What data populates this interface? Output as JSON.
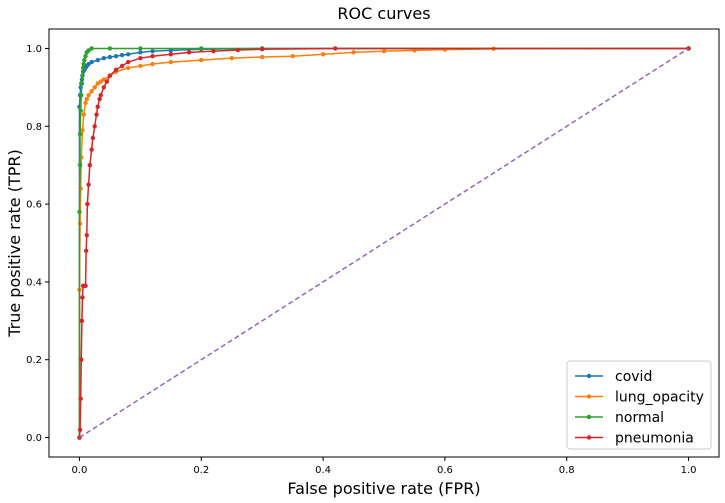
{
  "chart_data": {
    "type": "line",
    "title": "ROC curves",
    "xlabel": "False positive rate (FPR)",
    "ylabel": "True positive rate (TPR)",
    "xlim": [
      -0.05,
      1.05
    ],
    "ylim": [
      -0.05,
      1.05
    ],
    "xticks": [
      0.0,
      0.2,
      0.4,
      0.6,
      0.8,
      1.0
    ],
    "xtick_labels": [
      "0.0",
      "0.2",
      "0.4",
      "0.6",
      "0.8",
      "1.0"
    ],
    "yticks": [
      0.0,
      0.2,
      0.4,
      0.6,
      0.8,
      1.0
    ],
    "ytick_labels": [
      "0.0",
      "0.2",
      "0.4",
      "0.6",
      "0.8",
      "1.0"
    ],
    "grid": false,
    "legend": "lower-right",
    "series": [
      {
        "name": "covid",
        "color": "#1f77b4",
        "marker": "dot",
        "x": [
          0.0,
          0.0,
          0.001,
          0.002,
          0.003,
          0.004,
          0.005,
          0.006,
          0.008,
          0.01,
          0.012,
          0.015,
          0.02,
          0.03,
          0.04,
          0.05,
          0.06,
          0.07,
          0.08,
          0.1,
          0.12,
          0.15,
          0.2,
          0.3,
          1.0
        ],
        "y": [
          0.0,
          0.85,
          0.88,
          0.9,
          0.91,
          0.92,
          0.93,
          0.94,
          0.945,
          0.95,
          0.955,
          0.96,
          0.965,
          0.97,
          0.975,
          0.978,
          0.98,
          0.983,
          0.985,
          0.99,
          0.993,
          0.995,
          0.998,
          1.0,
          1.0
        ]
      },
      {
        "name": "lung_opacity",
        "color": "#ff7f0e",
        "marker": "dot",
        "x": [
          0.0,
          0.0,
          0.001,
          0.002,
          0.003,
          0.005,
          0.007,
          0.01,
          0.012,
          0.015,
          0.02,
          0.025,
          0.03,
          0.035,
          0.04,
          0.05,
          0.06,
          0.08,
          0.1,
          0.12,
          0.15,
          0.2,
          0.25,
          0.3,
          0.35,
          0.4,
          0.45,
          0.5,
          0.55,
          0.6,
          0.68,
          1.0
        ],
        "y": [
          0.0,
          0.38,
          0.55,
          0.64,
          0.72,
          0.79,
          0.83,
          0.86,
          0.87,
          0.88,
          0.89,
          0.9,
          0.91,
          0.915,
          0.92,
          0.93,
          0.94,
          0.95,
          0.955,
          0.96,
          0.965,
          0.97,
          0.975,
          0.978,
          0.98,
          0.985,
          0.99,
          0.993,
          0.995,
          0.997,
          0.999,
          1.0
        ]
      },
      {
        "name": "normal",
        "color": "#2ca02c",
        "marker": "dot",
        "x": [
          0.0,
          0.0,
          0.001,
          0.001,
          0.002,
          0.003,
          0.004,
          0.005,
          0.006,
          0.007,
          0.008,
          0.01,
          0.012,
          0.015,
          0.02,
          0.05,
          0.1,
          0.2,
          0.3,
          1.0
        ],
        "y": [
          0.0,
          0.58,
          0.7,
          0.78,
          0.84,
          0.88,
          0.91,
          0.93,
          0.95,
          0.96,
          0.97,
          0.98,
          0.99,
          0.995,
          1.0,
          1.0,
          1.0,
          1.0,
          1.0,
          1.0
        ]
      },
      {
        "name": "pneumonia",
        "color": "#d62728",
        "marker": "dot",
        "x": [
          0.0,
          0.001,
          0.002,
          0.003,
          0.004,
          0.005,
          0.006,
          0.008,
          0.01,
          0.011,
          0.012,
          0.013,
          0.015,
          0.017,
          0.02,
          0.022,
          0.025,
          0.028,
          0.03,
          0.033,
          0.035,
          0.04,
          0.045,
          0.05,
          0.06,
          0.07,
          0.08,
          0.1,
          0.12,
          0.15,
          0.18,
          0.22,
          0.26,
          0.3,
          0.42,
          1.0
        ],
        "y": [
          0.0,
          0.02,
          0.1,
          0.2,
          0.3,
          0.36,
          0.39,
          0.39,
          0.39,
          0.48,
          0.52,
          0.6,
          0.65,
          0.7,
          0.74,
          0.77,
          0.8,
          0.83,
          0.85,
          0.87,
          0.88,
          0.9,
          0.915,
          0.93,
          0.945,
          0.955,
          0.965,
          0.975,
          0.98,
          0.985,
          0.99,
          0.993,
          0.996,
          0.998,
          1.0,
          1.0
        ]
      },
      {
        "name": "",
        "color": "#9467bd",
        "dash": true,
        "x": [
          0.0,
          1.0
        ],
        "y": [
          0.0,
          1.0
        ]
      }
    ]
  }
}
